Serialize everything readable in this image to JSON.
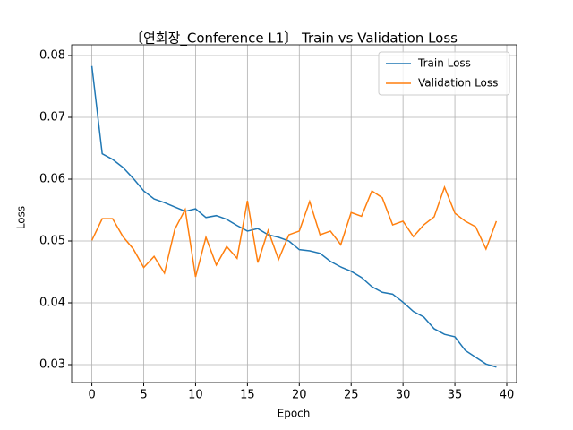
{
  "chart_data": {
    "type": "line",
    "title": "〔연회장_Conference L1〕 Train vs Validation Loss",
    "xlabel": "Epoch",
    "ylabel": "Loss",
    "x": [
      0,
      1,
      2,
      3,
      4,
      5,
      6,
      7,
      8,
      9,
      10,
      11,
      12,
      13,
      14,
      15,
      16,
      17,
      18,
      19,
      20,
      21,
      22,
      23,
      24,
      25,
      26,
      27,
      28,
      29,
      30,
      31,
      32,
      33,
      34,
      35,
      36,
      37,
      38,
      39
    ],
    "series": [
      {
        "name": "Train Loss",
        "color": "#1f77b4",
        "values": [
          0.0783,
          0.0641,
          0.0632,
          0.0619,
          0.0601,
          0.0581,
          0.0568,
          0.0562,
          0.0555,
          0.0548,
          0.0552,
          0.0538,
          0.0541,
          0.0535,
          0.0525,
          0.0516,
          0.052,
          0.051,
          0.0506,
          0.05,
          0.0486,
          0.0484,
          0.048,
          0.0467,
          0.0458,
          0.0451,
          0.0441,
          0.0426,
          0.0417,
          0.0414,
          0.0401,
          0.0386,
          0.0377,
          0.0358,
          0.0349,
          0.0345,
          0.0323,
          0.0312,
          0.0301,
          0.0296
        ]
      },
      {
        "name": "Validation Loss",
        "color": "#ff7f0e",
        "values": [
          0.0501,
          0.0536,
          0.0536,
          0.0507,
          0.0487,
          0.0457,
          0.0475,
          0.0448,
          0.0519,
          0.0551,
          0.0442,
          0.0506,
          0.0461,
          0.0491,
          0.0472,
          0.0565,
          0.0465,
          0.0517,
          0.047,
          0.051,
          0.0516,
          0.0564,
          0.051,
          0.0516,
          0.0494,
          0.0546,
          0.054,
          0.0581,
          0.057,
          0.0526,
          0.0532,
          0.0507,
          0.0526,
          0.0539,
          0.0587,
          0.0545,
          0.0532,
          0.0523,
          0.0487,
          0.0532
        ]
      }
    ],
    "xlim": [
      -1.95,
      40.95
    ],
    "ylim": [
      0.0271,
      0.08174
    ],
    "xticks": [
      0,
      5,
      10,
      15,
      20,
      25,
      30,
      35,
      40
    ],
    "yticks": [
      0.03,
      0.04,
      0.05,
      0.06,
      0.07,
      0.08
    ],
    "grid": true,
    "legend": "upper right"
  }
}
